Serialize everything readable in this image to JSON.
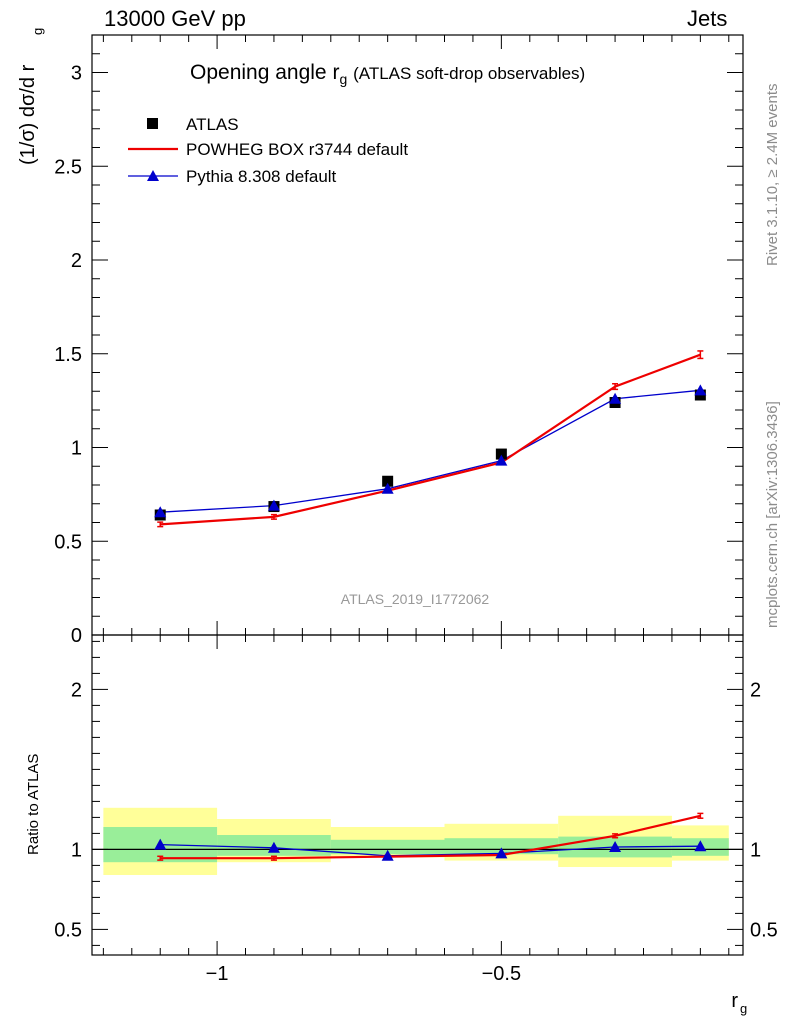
{
  "header": {
    "left": "13000 GeV pp",
    "right": "Jets"
  },
  "side_text": {
    "top": "Rivet 3.1.10, ≥ 2.4M events",
    "bottom": "mcplots.cern.ch [arXiv:1306.3436]"
  },
  "watermark": "ATLAS_2019_I1772062",
  "chart_data": [
    {
      "type": "line",
      "title": "Opening angle r",
      "title_sub": "g",
      "title_suffix": "(ATLAS soft-drop observables)",
      "ylabel": "(1/σ) dσ/d r",
      "ylabel_sub": "g",
      "xlabel": "r",
      "xlabel_sub": "g",
      "xlim": [
        -1.22,
        -0.075
      ],
      "ylim": [
        0,
        3.2
      ],
      "x_ticks": [
        -1,
        -0.5
      ],
      "x_tick_labels": [
        "−1",
        "−0.5"
      ],
      "y_ticks": [
        0,
        0.5,
        1,
        1.5,
        2,
        2.5,
        3
      ],
      "y_tick_labels": [
        "0",
        "0.5",
        "1",
        "1.5",
        "2",
        "2.5",
        "3"
      ],
      "legend_position": "top-left",
      "x": [
        -1.1,
        -0.9,
        -0.7,
        -0.5,
        -0.3,
        -0.15
      ],
      "series": [
        {
          "name": "ATLAS",
          "marker": "square",
          "color": "#000000",
          "values": [
            0.64,
            0.685,
            0.82,
            0.965,
            1.24,
            1.28
          ]
        },
        {
          "name": "POWHEG BOX r3744 default",
          "marker": "none",
          "color": "#ee0000",
          "values": [
            0.59,
            0.63,
            0.77,
            0.92,
            1.325,
            1.495
          ],
          "errors": [
            0.012,
            0.012,
            0.01,
            0.01,
            0.015,
            0.02
          ]
        },
        {
          "name": "Pythia 8.308 default",
          "marker": "triangle",
          "color": "#0000cc",
          "values": [
            0.655,
            0.69,
            0.78,
            0.93,
            1.26,
            1.305
          ]
        }
      ]
    },
    {
      "type": "line",
      "ylabel": "Ratio to ATLAS",
      "xlim": [
        -1.22,
        -0.075
      ],
      "ylim": [
        0.34,
        2.34
      ],
      "y_ticks": [
        0.5,
        1,
        2
      ],
      "y_tick_labels": [
        "0.5",
        "1",
        "2"
      ],
      "reference_line": 1,
      "bins": [
        {
          "x0": -1.2,
          "x1": -1.0,
          "band_yellow": [
            0.84,
            1.26
          ],
          "band_green": [
            0.92,
            1.14
          ]
        },
        {
          "x0": -1.0,
          "x1": -0.8,
          "band_yellow": [
            0.92,
            1.19
          ],
          "band_green": [
            0.96,
            1.09
          ]
        },
        {
          "x0": -0.8,
          "x1": -0.6,
          "band_yellow": [
            0.95,
            1.14
          ],
          "band_green": [
            0.97,
            1.06
          ]
        },
        {
          "x0": -0.6,
          "x1": -0.4,
          "band_yellow": [
            0.93,
            1.16
          ],
          "band_green": [
            0.97,
            1.07
          ]
        },
        {
          "x0": -0.4,
          "x1": -0.2,
          "band_yellow": [
            0.89,
            1.21
          ],
          "band_green": [
            0.95,
            1.08
          ]
        },
        {
          "x0": -0.2,
          "x1": -0.1,
          "band_yellow": [
            0.93,
            1.15
          ],
          "band_green": [
            0.96,
            1.07
          ]
        }
      ],
      "x": [
        -1.1,
        -0.9,
        -0.7,
        -0.5,
        -0.3,
        -0.15
      ],
      "series": [
        {
          "name": "POWHEG BOX r3744 default",
          "marker": "none",
          "color": "#ee0000",
          "values": [
            0.945,
            0.945,
            0.955,
            0.965,
            1.085,
            1.21
          ],
          "errors": [
            0.012,
            0.012,
            0.01,
            0.01,
            0.012,
            0.015
          ]
        },
        {
          "name": "Pythia 8.308 default",
          "marker": "triangle",
          "color": "#0000cc",
          "values": [
            1.03,
            1.01,
            0.96,
            0.975,
            1.015,
            1.02
          ]
        }
      ]
    }
  ]
}
